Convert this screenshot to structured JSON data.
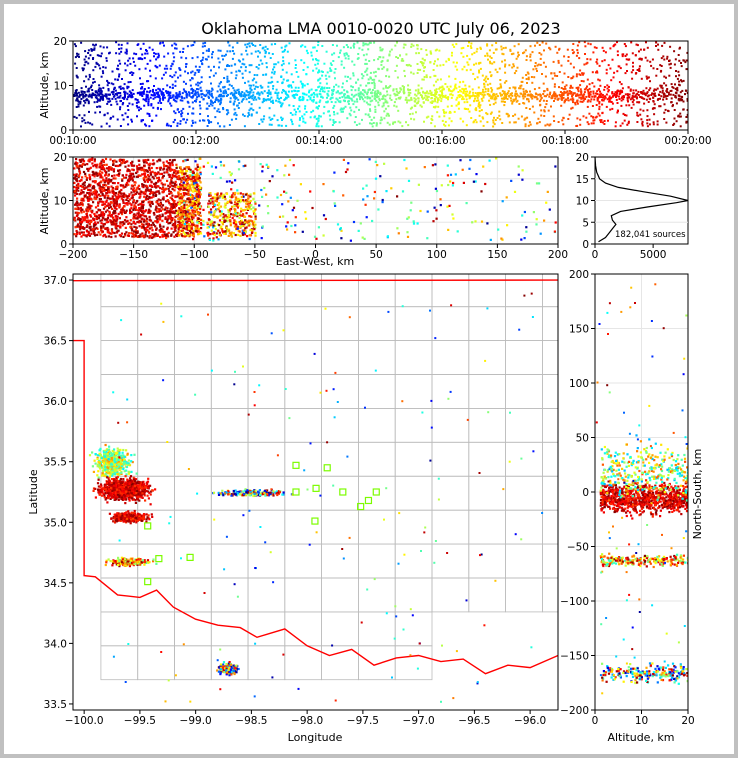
{
  "chart_data": {
    "title": "Oklahoma LMA 0010-0020 UTC July 06, 2023",
    "source_count_label": "182,041 sources",
    "panels": [
      {
        "id": "time-height",
        "type": "scatter",
        "ylabel": "Altitude, km",
        "xlim": [
          "00:10:00",
          "00:20:00"
        ],
        "ylim": [
          0,
          20
        ],
        "xticks": [
          "00:10:00",
          "00:12:00",
          "00:14:00",
          "00:16:00",
          "00:18:00",
          "00:20:00"
        ],
        "yticks": [
          "0",
          "10",
          "20"
        ],
        "color_scale": "jet colormap by time (00:10:00 blue → 00:20:00 dark red)"
      },
      {
        "id": "ew-altitude",
        "type": "scatter",
        "xlabel": "East-West, km",
        "ylabel": "Altitude, km",
        "xlim": [
          -200,
          200
        ],
        "ylim": [
          0,
          20
        ],
        "xticks": [
          "−200",
          "−150",
          "−100",
          "−50",
          "0",
          "50",
          "100",
          "150",
          "200"
        ],
        "yticks": [
          "0",
          "10",
          "20"
        ]
      },
      {
        "id": "altitude-histogram",
        "type": "line",
        "xlim": [
          0,
          8000
        ],
        "ylim": [
          0,
          20
        ],
        "xticks": [
          "0",
          "5000"
        ],
        "yticks": [
          "0",
          "5",
          "10",
          "15",
          "20"
        ],
        "profile": [
          {
            "alt": 0.5,
            "count": 300
          },
          {
            "alt": 1.5,
            "count": 900
          },
          {
            "alt": 2.5,
            "count": 1200
          },
          {
            "alt": 3.5,
            "count": 1500
          },
          {
            "alt": 4.5,
            "count": 1800
          },
          {
            "alt": 5.5,
            "count": 1500
          },
          {
            "alt": 6.5,
            "count": 1400
          },
          {
            "alt": 7.5,
            "count": 2200
          },
          {
            "alt": 8.5,
            "count": 4500
          },
          {
            "alt": 9.5,
            "count": 7000
          },
          {
            "alt": 10.0,
            "count": 8000
          },
          {
            "alt": 11.0,
            "count": 6500
          },
          {
            "alt": 12.0,
            "count": 4200
          },
          {
            "alt": 13.0,
            "count": 2000
          },
          {
            "alt": 14.0,
            "count": 900
          },
          {
            "alt": 15.0,
            "count": 400
          },
          {
            "alt": 16.5,
            "count": 150
          },
          {
            "alt": 18.0,
            "count": 50
          },
          {
            "alt": 20.0,
            "count": 0
          }
        ]
      },
      {
        "id": "plan-view",
        "type": "scatter",
        "xlabel": "Longitude",
        "ylabel": "Latitude",
        "xlim": [
          -100.1,
          -95.75
        ],
        "ylim": [
          33.45,
          37.05
        ],
        "xticks": [
          "−100.0",
          "−99.5",
          "−99.0",
          "−98.5",
          "−98.0",
          "−97.5",
          "−97.0",
          "−96.5",
          "−96.0"
        ],
        "yticks": [
          "33.5",
          "34.0",
          "34.5",
          "35.0",
          "35.5",
          "36.0",
          "36.5",
          "37.0"
        ],
        "station_color": "#7cfc00",
        "border_color": "#ff0000",
        "county_color": "#bbbbbb",
        "stations": [
          {
            "lon": -98.1,
            "lat": 35.47
          },
          {
            "lon": -97.82,
            "lat": 35.45
          },
          {
            "lon": -98.1,
            "lat": 35.25
          },
          {
            "lon": -97.92,
            "lat": 35.28
          },
          {
            "lon": -97.68,
            "lat": 35.25
          },
          {
            "lon": -97.38,
            "lat": 35.25
          },
          {
            "lon": -97.45,
            "lat": 35.18
          },
          {
            "lon": -97.52,
            "lat": 35.13
          },
          {
            "lon": -97.93,
            "lat": 35.01
          },
          {
            "lon": -99.43,
            "lat": 34.97
          },
          {
            "lon": -99.33,
            "lat": 34.7
          },
          {
            "lon": -99.05,
            "lat": 34.71
          },
          {
            "lon": -99.43,
            "lat": 34.51
          }
        ]
      },
      {
        "id": "ns-altitude",
        "type": "scatter",
        "xlabel": "Altitude, km",
        "ylabel": "North-South, km",
        "xlim": [
          0,
          20
        ],
        "ylim": [
          -200,
          200
        ],
        "xticks": [
          "0",
          "10",
          "20"
        ],
        "yticks": [
          "200",
          "150",
          "100",
          "50",
          "0",
          "−50",
          "−100",
          "−150",
          "−200"
        ]
      }
    ]
  }
}
